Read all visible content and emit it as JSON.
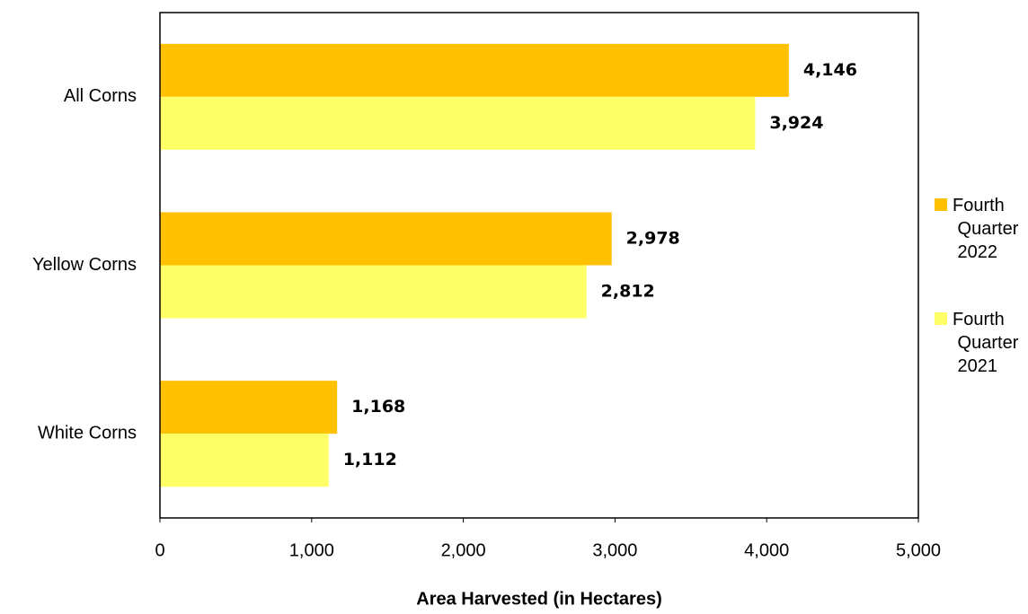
{
  "chart_data": {
    "type": "hbar",
    "xlabel": "Area Harvested (in Hectares)",
    "categories": [
      "All Corns",
      "Yellow Corns",
      "White Corns"
    ],
    "series": [
      {
        "name": "Fourth Quarter 2022",
        "color": "#FFC000",
        "values": [
          4146,
          2978,
          1168
        ],
        "value_labels": [
          "4,146",
          "2,978",
          "1,168"
        ]
      },
      {
        "name": "Fourth Quarter 2021",
        "color": "#FFFF66",
        "values": [
          3924,
          2812,
          1112
        ],
        "value_labels": [
          "3,924",
          "2,812",
          "1,112"
        ]
      }
    ],
    "xlim": [
      0,
      5000
    ],
    "xticks": [
      0,
      {
        "value": 1000,
        "label": "1,000"
      },
      {
        "value": 2000,
        "label": "2,000"
      },
      {
        "value": 3000,
        "label": "3,000"
      },
      {
        "value": 4000,
        "label": "4,000"
      },
      {
        "value": 5000,
        "label": "5,000"
      }
    ],
    "grid": false,
    "legend": "right"
  }
}
